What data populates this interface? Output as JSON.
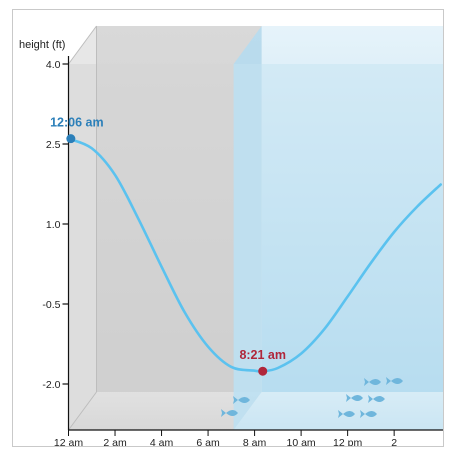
{
  "chart_data": {
    "type": "line",
    "title": "",
    "xlabel": "",
    "ylabel": "height (ft)",
    "x_ticks": [
      "12 am",
      "2 am",
      "4 am",
      "6 am",
      "8 am",
      "10 am",
      "12 pm",
      "2"
    ],
    "y_ticks": [
      "4.0",
      "2.5",
      "1.0",
      "-0.5",
      "-2.0"
    ],
    "y_tick_values": [
      4.0,
      2.5,
      1.0,
      -0.5,
      -2.0
    ],
    "xlim_hours": [
      0,
      16.1
    ],
    "ylim": [
      -2.8,
      4.0
    ],
    "grid": false,
    "shading": [
      {
        "name": "night",
        "from_hour": 0,
        "to_hour": 7.1,
        "color": "#cfcfcf"
      },
      {
        "name": "day",
        "from_hour": 7.1,
        "to_hour": 16.1,
        "color": "#cfe6f3"
      }
    ],
    "series": [
      {
        "color": "#5bc2ef",
        "x_hours": [
          0,
          1,
          2,
          3,
          4,
          5,
          6,
          7,
          8,
          8.35,
          9,
          10,
          11,
          12,
          13,
          14,
          15,
          16
        ],
        "values": [
          2.6,
          2.42,
          1.92,
          1.1,
          0.2,
          -0.66,
          -1.3,
          -1.68,
          -1.75,
          -1.76,
          -1.7,
          -1.43,
          -0.97,
          -0.36,
          0.27,
          0.85,
          1.33,
          1.74
        ]
      }
    ],
    "annotations": [
      {
        "label": "12:06 am",
        "x_hour": 0.1,
        "value": 2.6,
        "color": "#2b7fb9"
      },
      {
        "label": "8:21 am",
        "x_hour": 8.35,
        "value": -1.76,
        "color": "#b0263a"
      }
    ]
  },
  "colors": {
    "curve": "#5bc2ef",
    "high_marker": "#2b7fb9",
    "low_marker": "#b0263a",
    "fish": "#6fb6dc"
  },
  "icons": [
    "fish-icon"
  ]
}
